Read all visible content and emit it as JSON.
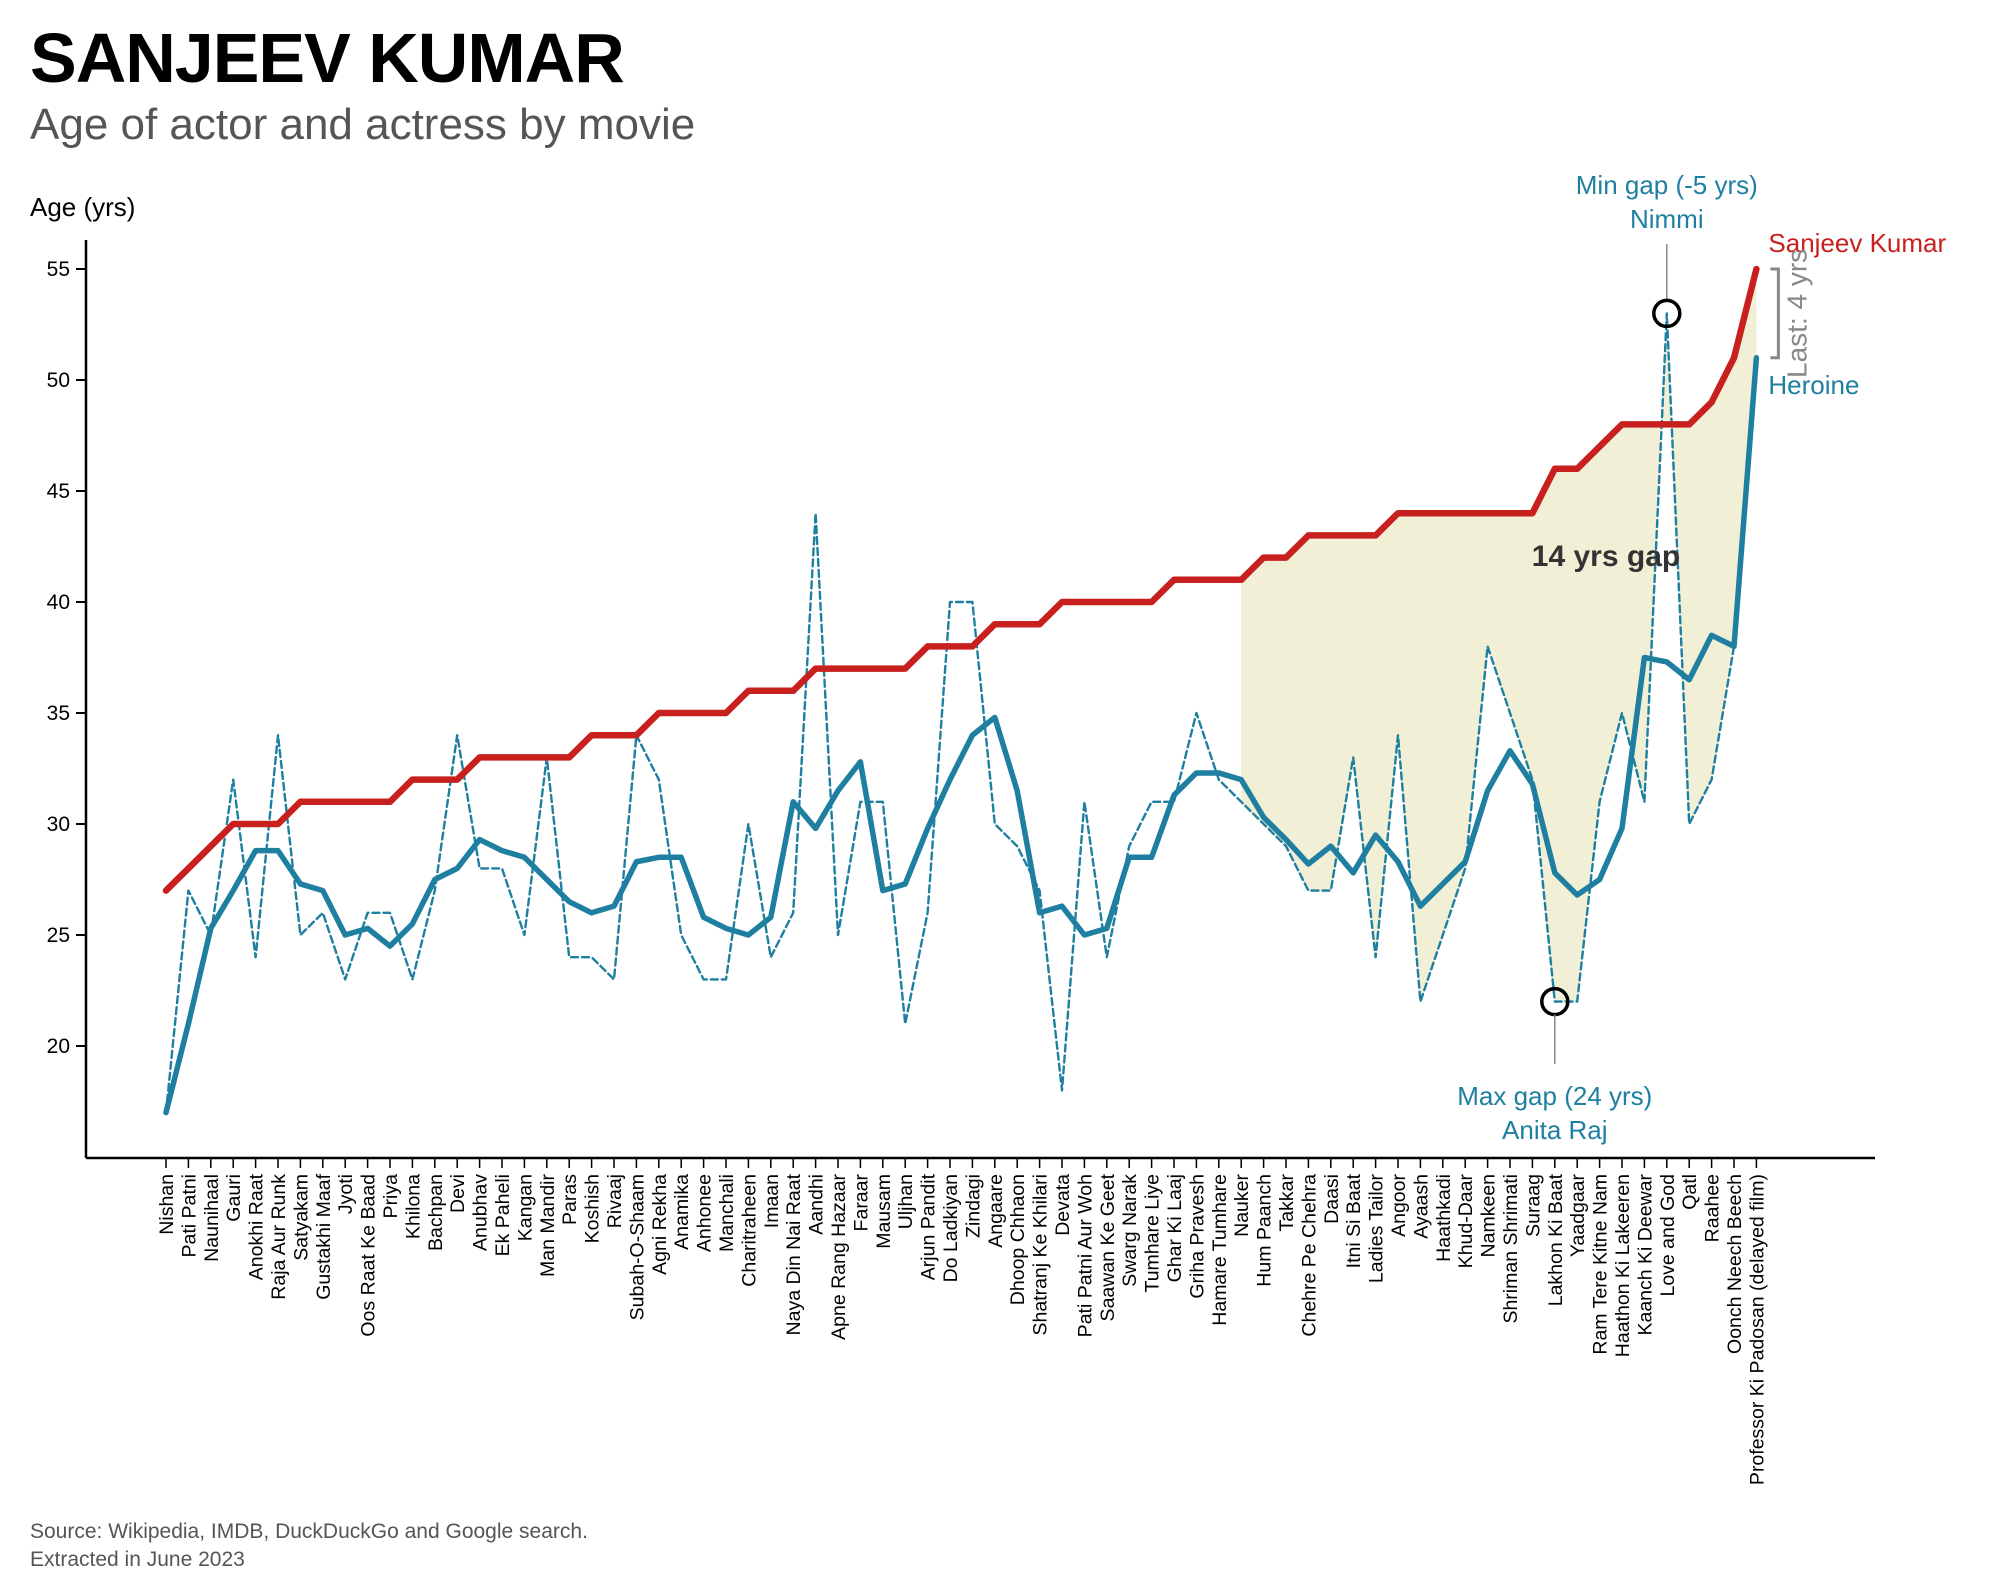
{
  "title": "SANJEEV KUMAR",
  "subtitle": "Age of actor and actress by movie",
  "source_line1": "Source: Wikipedia, IMDB, DuckDuckGo and Google search.",
  "source_line2": "Extracted in June 2023",
  "chart_data": {
    "type": "line",
    "ylabel": "Age (yrs)",
    "ylim": [
      15,
      57
    ],
    "yticks": [
      20,
      25,
      30,
      35,
      40,
      45,
      50,
      55
    ],
    "grid": false,
    "categories": [
      "Nishan",
      "Pati Patni",
      "Naunihaal",
      "Gauri",
      "Anokhi Raat",
      "Raja Aur Runk",
      "Satyakam",
      "Gustakhi Maaf",
      "Jyoti",
      "Oos Raat Ke Baad",
      "Priya",
      "Khilona",
      "Bachpan",
      "Devi",
      "Anubhav",
      "Ek Paheli",
      "Kangan",
      "Man Mandir",
      "Paras",
      "Koshish",
      "Rivaaj",
      "Subah-O-Shaam",
      "Agni Rekha",
      "Anamika",
      "Anhonee",
      "Manchali",
      "Charitraheen",
      "Imaan",
      "Naya Din Nai Raat",
      "Aandhi",
      "Apne Rang Hazaar",
      "Faraar",
      "Mausam",
      "Uljhan",
      "Arjun Pandit",
      "Do Ladkiyan",
      "Zindagi",
      "Angaare",
      "Dhoop Chhaon",
      "Shatranj Ke Khilari",
      "Devata",
      "Pati Patni Aur Woh",
      "Saawan Ke Geet",
      "Swarg Narak",
      "Tumhare Liye",
      "Ghar Ki Laaj",
      "Griha Pravesh",
      "Hamare Tumhare",
      "Nauker",
      "Hum Paanch",
      "Takkar",
      "Chehre Pe Chehra",
      "Daasi",
      "Itni Si Baat",
      "Ladies Tailor",
      "Angoor",
      "Ayaash",
      "Haathkadi",
      "Khud-Daar",
      "Namkeen",
      "Shriman Shrimati",
      "Suraag",
      "Lakhon Ki Baat",
      "Yaadgaar",
      "Ram Tere Kitne Nam",
      "Haathon Ki Lakeeren",
      "Kaanch Ki Deewar",
      "Love and God",
      "Qatl",
      "Raahee",
      "Oonch Neech Beech",
      "Professor Ki Padosan (delayed film)"
    ],
    "series": [
      {
        "name": "Sanjeev Kumar",
        "color": "#c8201f",
        "style": "solid",
        "values": [
          27,
          28,
          29,
          30,
          30,
          30,
          31,
          31,
          31,
          31,
          31,
          32,
          32,
          32,
          33,
          33,
          33,
          33,
          33,
          34,
          34,
          34,
          35,
          35,
          35,
          35,
          36,
          36,
          36,
          37,
          37,
          37,
          37,
          37,
          38,
          38,
          38,
          39,
          39,
          39,
          40,
          40,
          40,
          40,
          40,
          41,
          41,
          41,
          41,
          42,
          42,
          43,
          43,
          43,
          43,
          44,
          44,
          44,
          44,
          44,
          44,
          44,
          46,
          46,
          47,
          48,
          48,
          48,
          48,
          49,
          51,
          55
        ]
      },
      {
        "name": "Heroine",
        "color": "#1f7fa0",
        "style": "dashed",
        "values": [
          17,
          27,
          25,
          32,
          24,
          34,
          25,
          26,
          23,
          26,
          26,
          23,
          27,
          34,
          28,
          28,
          25,
          33,
          24,
          24,
          23,
          34,
          32,
          25,
          23,
          23,
          30,
          24,
          26,
          44,
          25,
          31,
          31,
          21,
          26,
          40,
          40,
          30,
          29,
          27,
          18,
          31,
          24,
          29,
          31,
          31,
          35,
          32,
          31,
          30,
          29,
          27,
          27,
          33,
          24,
          34,
          22,
          25,
          28,
          38,
          35,
          32,
          22,
          22,
          31,
          35,
          31,
          53,
          30,
          32,
          38,
          51
        ]
      },
      {
        "name": "Heroine",
        "color": "#1f7fa0",
        "style": "solid-smoothed",
        "values": [
          17,
          21,
          25.3,
          27,
          28.8,
          28.8,
          27.3,
          27,
          25,
          25.3,
          24.5,
          25.5,
          27.5,
          28,
          29.3,
          28.8,
          28.5,
          27.5,
          26.5,
          26,
          26.3,
          28.3,
          28.5,
          28.5,
          25.8,
          25.3,
          25,
          25.8,
          31,
          29.8,
          31.5,
          32.8,
          27,
          27.3,
          29.8,
          32,
          34,
          34.8,
          31.5,
          26,
          26.3,
          25,
          25.3,
          28.5,
          28.5,
          31.3,
          32.3,
          32.3,
          32,
          30.3,
          29.3,
          28.2,
          29,
          27.8,
          29.5,
          28.3,
          26.3,
          27.3,
          28.3,
          31.5,
          33.3,
          31.8,
          27.8,
          26.8,
          27.5,
          29.8,
          37.5,
          37.3,
          36.5,
          38.5,
          38,
          51
        ]
      }
    ],
    "annotations": {
      "min_gap_line1": "Min gap (-5 yrs)",
      "min_gap_line2": "Nimmi",
      "min_gap_movie": "Love and God",
      "min_gap_value": 53,
      "max_gap_line1": "Max gap (24 yrs)",
      "max_gap_line2": "Anita Raj",
      "max_gap_movie": "Lakhon Ki Baat",
      "max_gap_value": 22,
      "mean_gap_label": "14 yrs gap",
      "last_gap_label": "Last: 4 yrs",
      "series_label_actor": "Sanjeev Kumar",
      "series_label_heroine": "Heroine",
      "shade_from_movie": "Nauker",
      "shade_color": "#f1efd6"
    }
  }
}
